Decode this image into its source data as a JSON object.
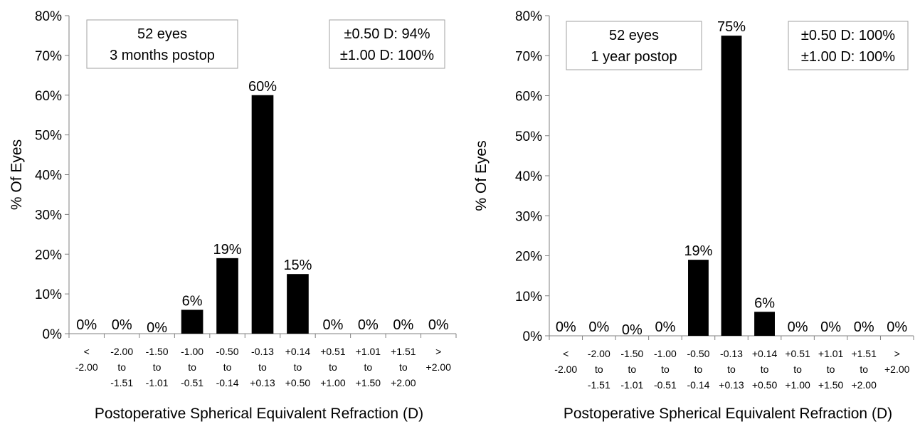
{
  "chart_data": [
    {
      "type": "bar",
      "xlabel": "Postoperative Spherical Equivalent Refraction (D)",
      "ylabel": "% Of Eyes",
      "ylim": [
        0,
        80
      ],
      "yticks": [
        "0%",
        "10%",
        "20%",
        "30%",
        "40%",
        "50%",
        "60%",
        "70%",
        "80%"
      ],
      "grid": false,
      "categories": [
        [
          "<",
          "-2.00"
        ],
        [
          "-2.00",
          "to",
          "-1.51"
        ],
        [
          "-1.50",
          "to",
          "-1.01"
        ],
        [
          "-1.00",
          "to",
          "-0.51"
        ],
        [
          "-0.50",
          "to",
          "-0.14"
        ],
        [
          "-0.13",
          "to",
          "+0.13"
        ],
        [
          "+0.14",
          "to",
          "+0.50"
        ],
        [
          "+0.51",
          "to",
          "+1.00"
        ],
        [
          "+1.01",
          "to",
          "+1.50"
        ],
        [
          "+1.51",
          "to",
          "+2.00"
        ],
        [
          ">",
          "+2.00"
        ]
      ],
      "values": [
        0,
        0,
        0,
        6,
        19,
        60,
        15,
        0,
        0,
        0,
        0
      ],
      "value_labels": [
        "0%",
        "0%",
        "0%",
        "6%",
        "19%",
        "60%",
        "15%",
        "0%",
        "0%",
        "0%",
        "0%"
      ],
      "annotations": {
        "left_box": [
          "52 eyes",
          "3 months postop"
        ],
        "right_box": [
          "±0.50 D: 94%",
          "±1.00 D: 100%"
        ]
      }
    },
    {
      "type": "bar",
      "xlabel": "Postoperative Spherical Equivalent Refraction (D)",
      "ylabel": "% Of Eyes",
      "ylim": [
        0,
        80
      ],
      "yticks": [
        "0%",
        "10%",
        "20%",
        "30%",
        "40%",
        "50%",
        "60%",
        "70%",
        "80%"
      ],
      "grid": false,
      "categories": [
        [
          "<",
          "-2.00"
        ],
        [
          "-2.00",
          "to",
          "-1.51"
        ],
        [
          "-1.50",
          "to",
          "-1.01"
        ],
        [
          "-1.00",
          "to",
          "-0.51"
        ],
        [
          "-0.50",
          "to",
          "-0.14"
        ],
        [
          "-0.13",
          "to",
          "+0.13"
        ],
        [
          "+0.14",
          "to",
          "+0.50"
        ],
        [
          "+0.51",
          "to",
          "+1.00"
        ],
        [
          "+1.01",
          "to",
          "+1.50"
        ],
        [
          "+1.51",
          "to",
          "+2.00"
        ],
        [
          ">",
          "+2.00"
        ]
      ],
      "values": [
        0,
        0,
        0,
        0,
        19,
        75,
        6,
        0,
        0,
        0,
        0
      ],
      "value_labels": [
        "0%",
        "0%",
        "0%",
        "0%",
        "19%",
        "75%",
        "6%",
        "0%",
        "0%",
        "0%",
        "0%"
      ],
      "annotations": {
        "left_box": [
          "52 eyes",
          "1 year postop"
        ],
        "right_box": [
          "±0.50 D: 100%",
          "±1.00 D: 100%"
        ]
      }
    }
  ],
  "colors": {
    "bar": "#000000",
    "axis": "#808080",
    "box_border": "#a0a0a0"
  }
}
